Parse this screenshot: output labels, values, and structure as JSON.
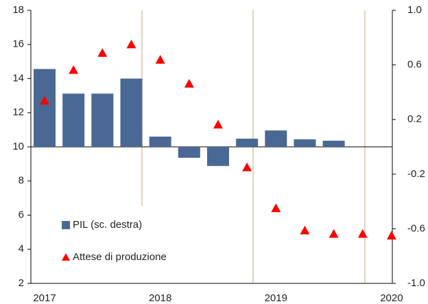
{
  "chart_data": {
    "type": "bar+scatter",
    "categories": [
      "2017",
      null,
      null,
      null,
      "2018",
      null,
      null,
      null,
      "2019",
      null,
      null,
      null,
      "2020"
    ],
    "series": [
      {
        "name": "PIL (sc. destra)",
        "type": "bar",
        "axis": "y2",
        "color": "#4a6894",
        "values": [
          0.57,
          0.39,
          0.39,
          0.5,
          0.075,
          -0.08,
          -0.14,
          0.06,
          0.12,
          0.055,
          0.045,
          null,
          null
        ]
      },
      {
        "name": "Attese di produzione",
        "type": "scatter",
        "axis": "y",
        "color": "#ff0000",
        "values": [
          12.7,
          14.5,
          15.5,
          16.0,
          15.1,
          13.7,
          11.3,
          8.8,
          6.4,
          5.1,
          4.9,
          4.9,
          4.8
        ]
      }
    ],
    "ylim": [
      2,
      18
    ],
    "yticks": [
      2,
      4,
      6,
      8,
      10,
      12,
      14,
      16,
      18
    ],
    "y2lim": [
      -1.0,
      1.0
    ],
    "y2ticks": [
      {
        "value": -1.0,
        "label": "-1.0"
      },
      -0.6,
      -0.2,
      0.2,
      0.6,
      {
        "value": 1.0,
        "label": "1.0"
      }
    ],
    "legend": "lower left"
  }
}
